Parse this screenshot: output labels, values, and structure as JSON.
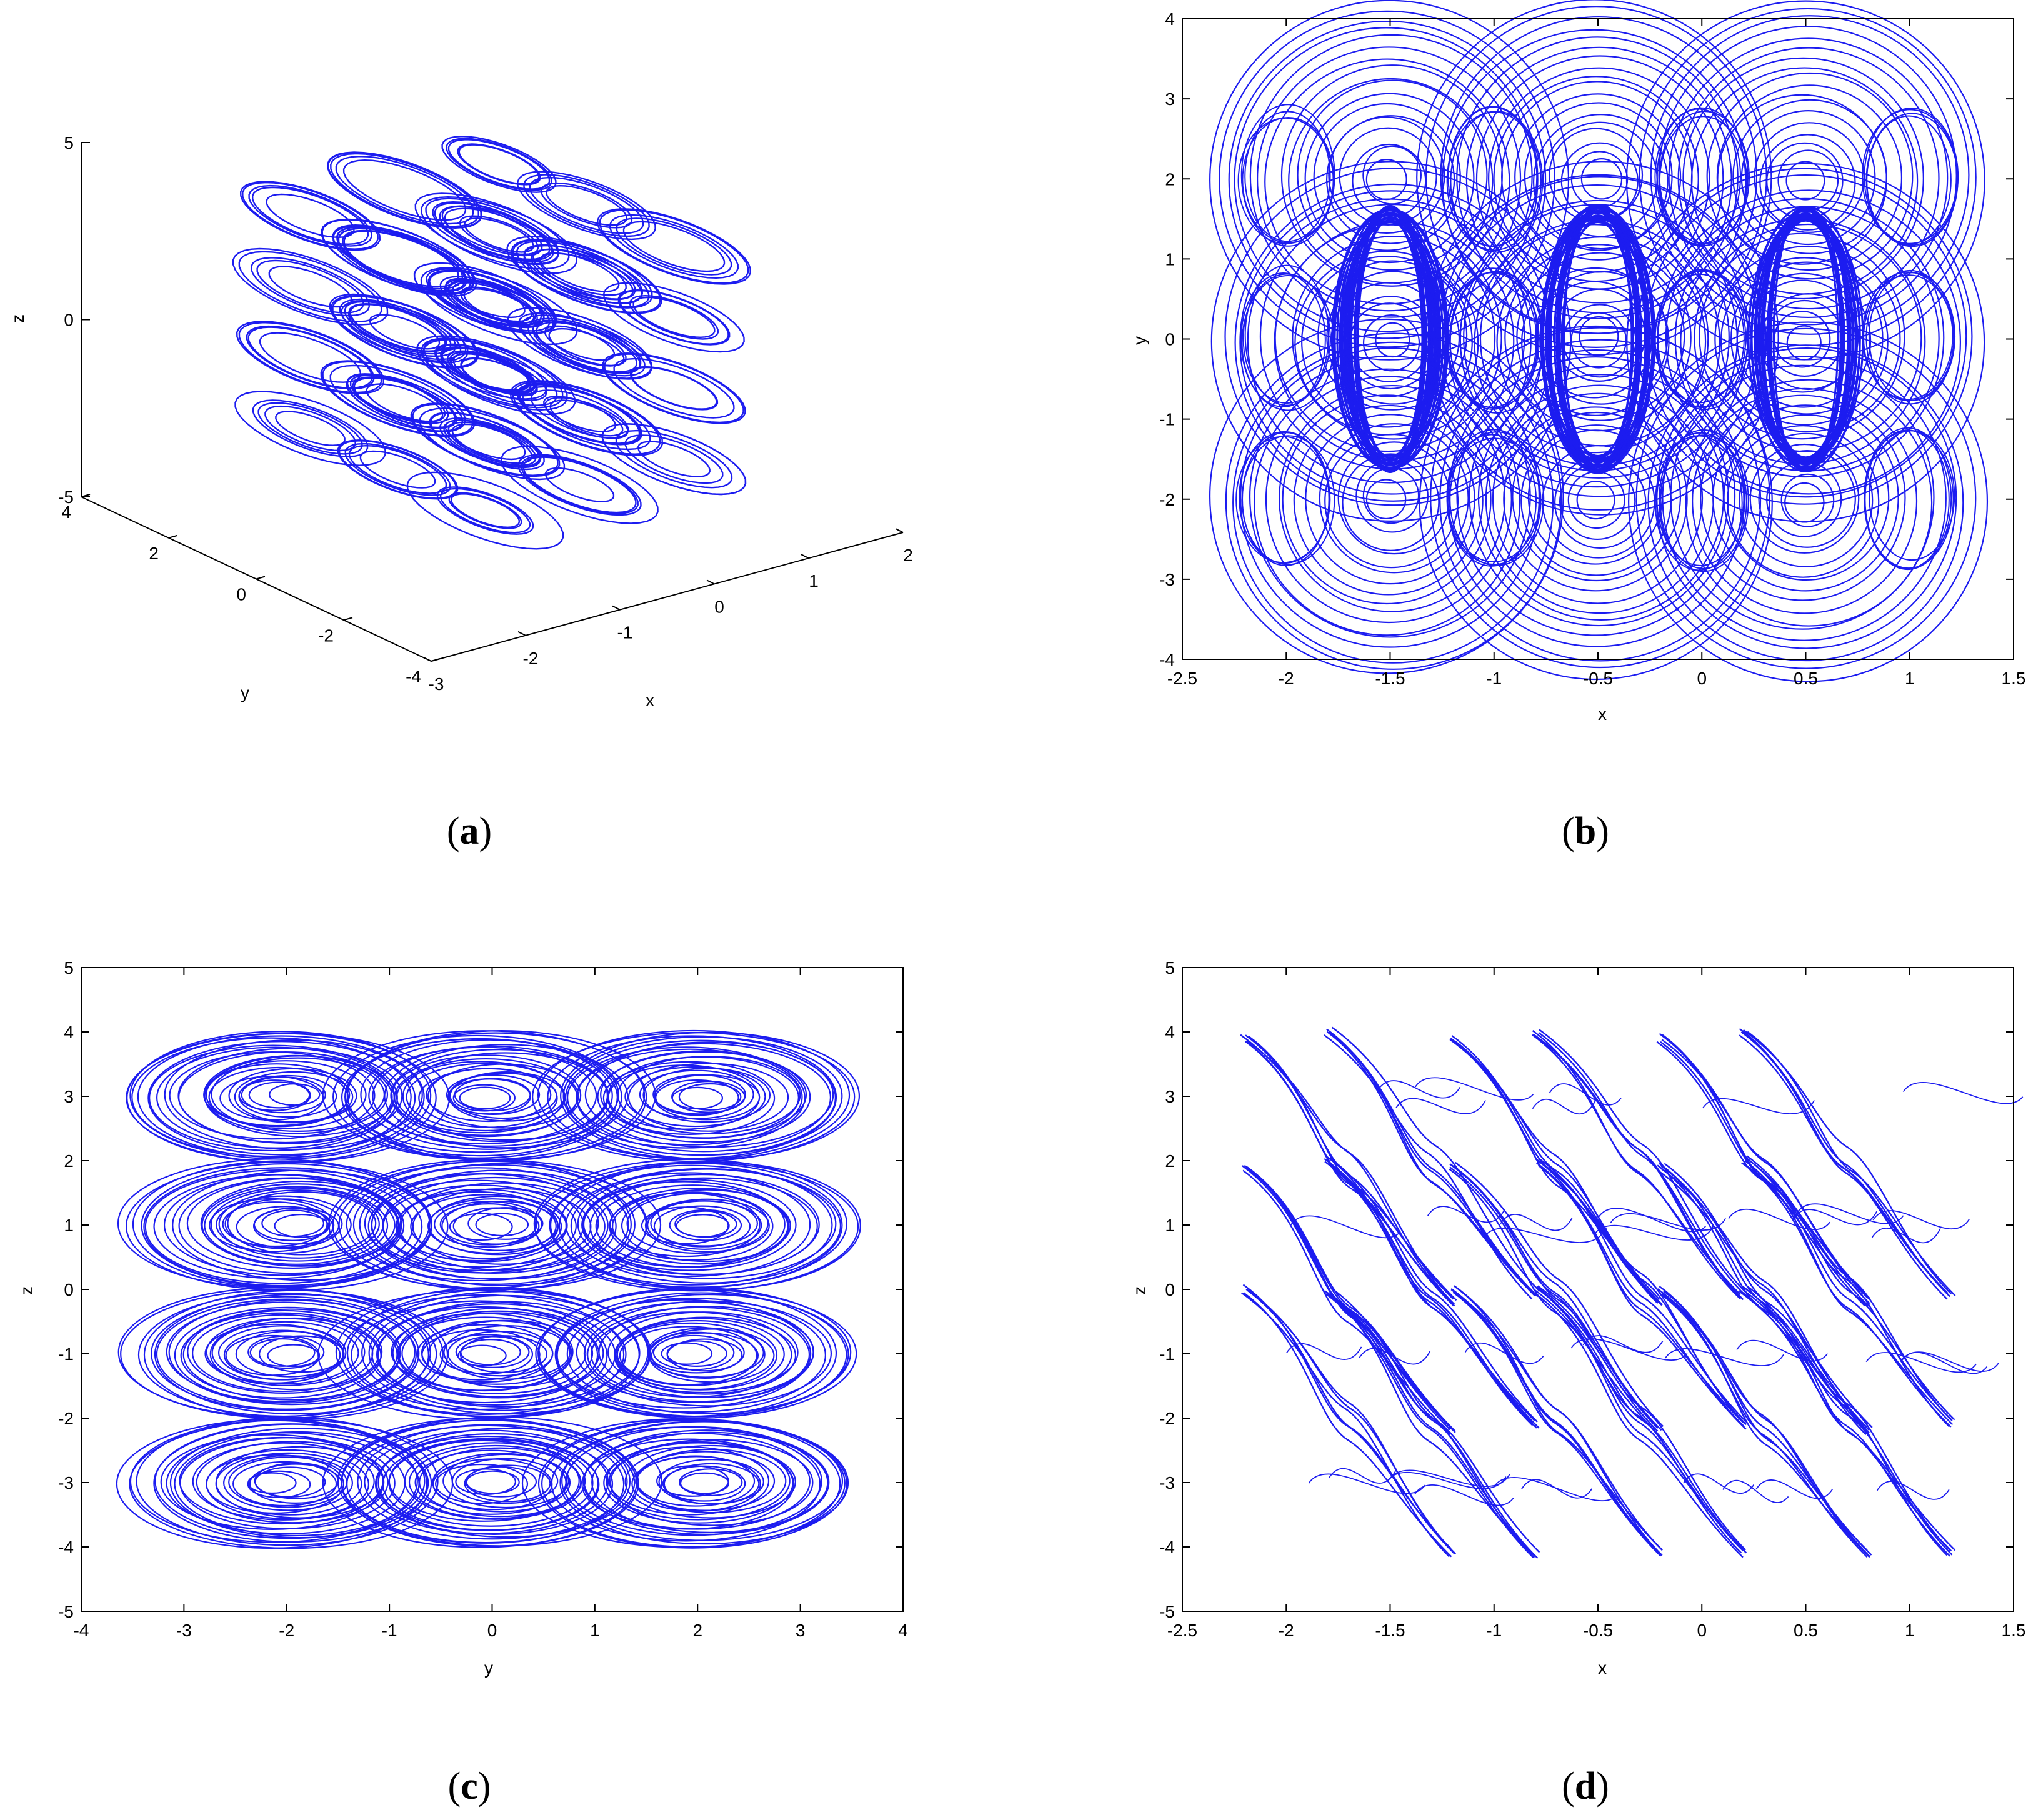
{
  "colors": {
    "trace": "#1c1cf0",
    "axis": "#000000"
  },
  "chart_data": [
    {
      "panel": "a",
      "caption": "a",
      "type": "line",
      "projection": "3d",
      "xlabel": "x",
      "ylabel": "y",
      "zlabel": "z",
      "xlim": [
        -3,
        2
      ],
      "ylim": [
        -4,
        4
      ],
      "zlim": [
        -5,
        5
      ],
      "x_ticks": [
        "-3",
        "-2",
        "-1",
        "0",
        "1",
        "2"
      ],
      "y_ticks": [
        "-4",
        "-2",
        "0",
        "2",
        "4"
      ],
      "z_ticks": [
        "-5",
        "0",
        "5"
      ],
      "series": [
        {
          "points": {
            "x_centers": [
              -1.5,
              -0.5,
              0.5
            ],
            "y_centers": [
              -2,
              0,
              2
            ],
            "z_centers": [
              -3,
              -1,
              1,
              3
            ],
            "radius": 0.6
          }
        }
      ]
    },
    {
      "panel": "b",
      "caption": "b",
      "type": "line",
      "xlabel": "x",
      "ylabel": "y",
      "xlim": [
        -2.5,
        1.5
      ],
      "ylim": [
        -4,
        4
      ],
      "x_ticks": [
        "-2.5",
        "-2",
        "-1.5",
        "-1",
        "-0.5",
        "0",
        "0.5",
        "1",
        "1.5"
      ],
      "y_ticks": [
        "-4",
        "-3",
        "-2",
        "-1",
        "0",
        "1",
        "2",
        "3",
        "4"
      ],
      "series": [
        {
          "scroll_centers_x": [
            -1.5,
            -0.5,
            0.5
          ],
          "scroll_centers_y": [
            -2,
            0,
            2
          ],
          "outer_half_width": 0.28,
          "outer_half_height": 1.65,
          "side_lobe_centers_x": [
            -2.0,
            -1.0,
            0.0,
            1.0
          ]
        }
      ]
    },
    {
      "panel": "c",
      "caption": "c",
      "type": "line",
      "xlabel": "y",
      "ylabel": "z",
      "xlim": [
        -4,
        4
      ],
      "ylim": [
        -5,
        5
      ],
      "x_ticks": [
        "-4",
        "-3",
        "-2",
        "-1",
        "0",
        "1",
        "2",
        "3",
        "4"
      ],
      "y_ticks": [
        "-5",
        "-4",
        "-3",
        "-2",
        "-1",
        "0",
        "1",
        "2",
        "3",
        "4",
        "5"
      ],
      "series": [
        {
          "scroll_centers_y": [
            -2,
            0,
            2
          ],
          "scroll_centers_z": [
            -3,
            -1,
            1,
            3
          ],
          "half_width": 1.55,
          "half_height": 1.0
        }
      ]
    },
    {
      "panel": "d",
      "caption": "d",
      "type": "line",
      "xlabel": "x",
      "ylabel": "z",
      "xlim": [
        -2.5,
        1.5
      ],
      "ylim": [
        -5,
        5
      ],
      "x_ticks": [
        "-2.5",
        "-2",
        "-1.5",
        "-1",
        "-0.5",
        "0",
        "0.5",
        "1",
        "1.5"
      ],
      "y_ticks": [
        "-5",
        "-4",
        "-3",
        "-2",
        "-1",
        "0",
        "1",
        "2",
        "3",
        "4",
        "5"
      ],
      "series": [
        {
          "band_start_x": [
            -2.2,
            -1.8,
            -1.2,
            -0.8,
            -0.2,
            0.2
          ],
          "band_slope": -4.0,
          "band_length_x": 1.0,
          "bands_z_top": [
            3.9,
            4.0,
            1.9,
            0.0
          ]
        }
      ]
    }
  ]
}
